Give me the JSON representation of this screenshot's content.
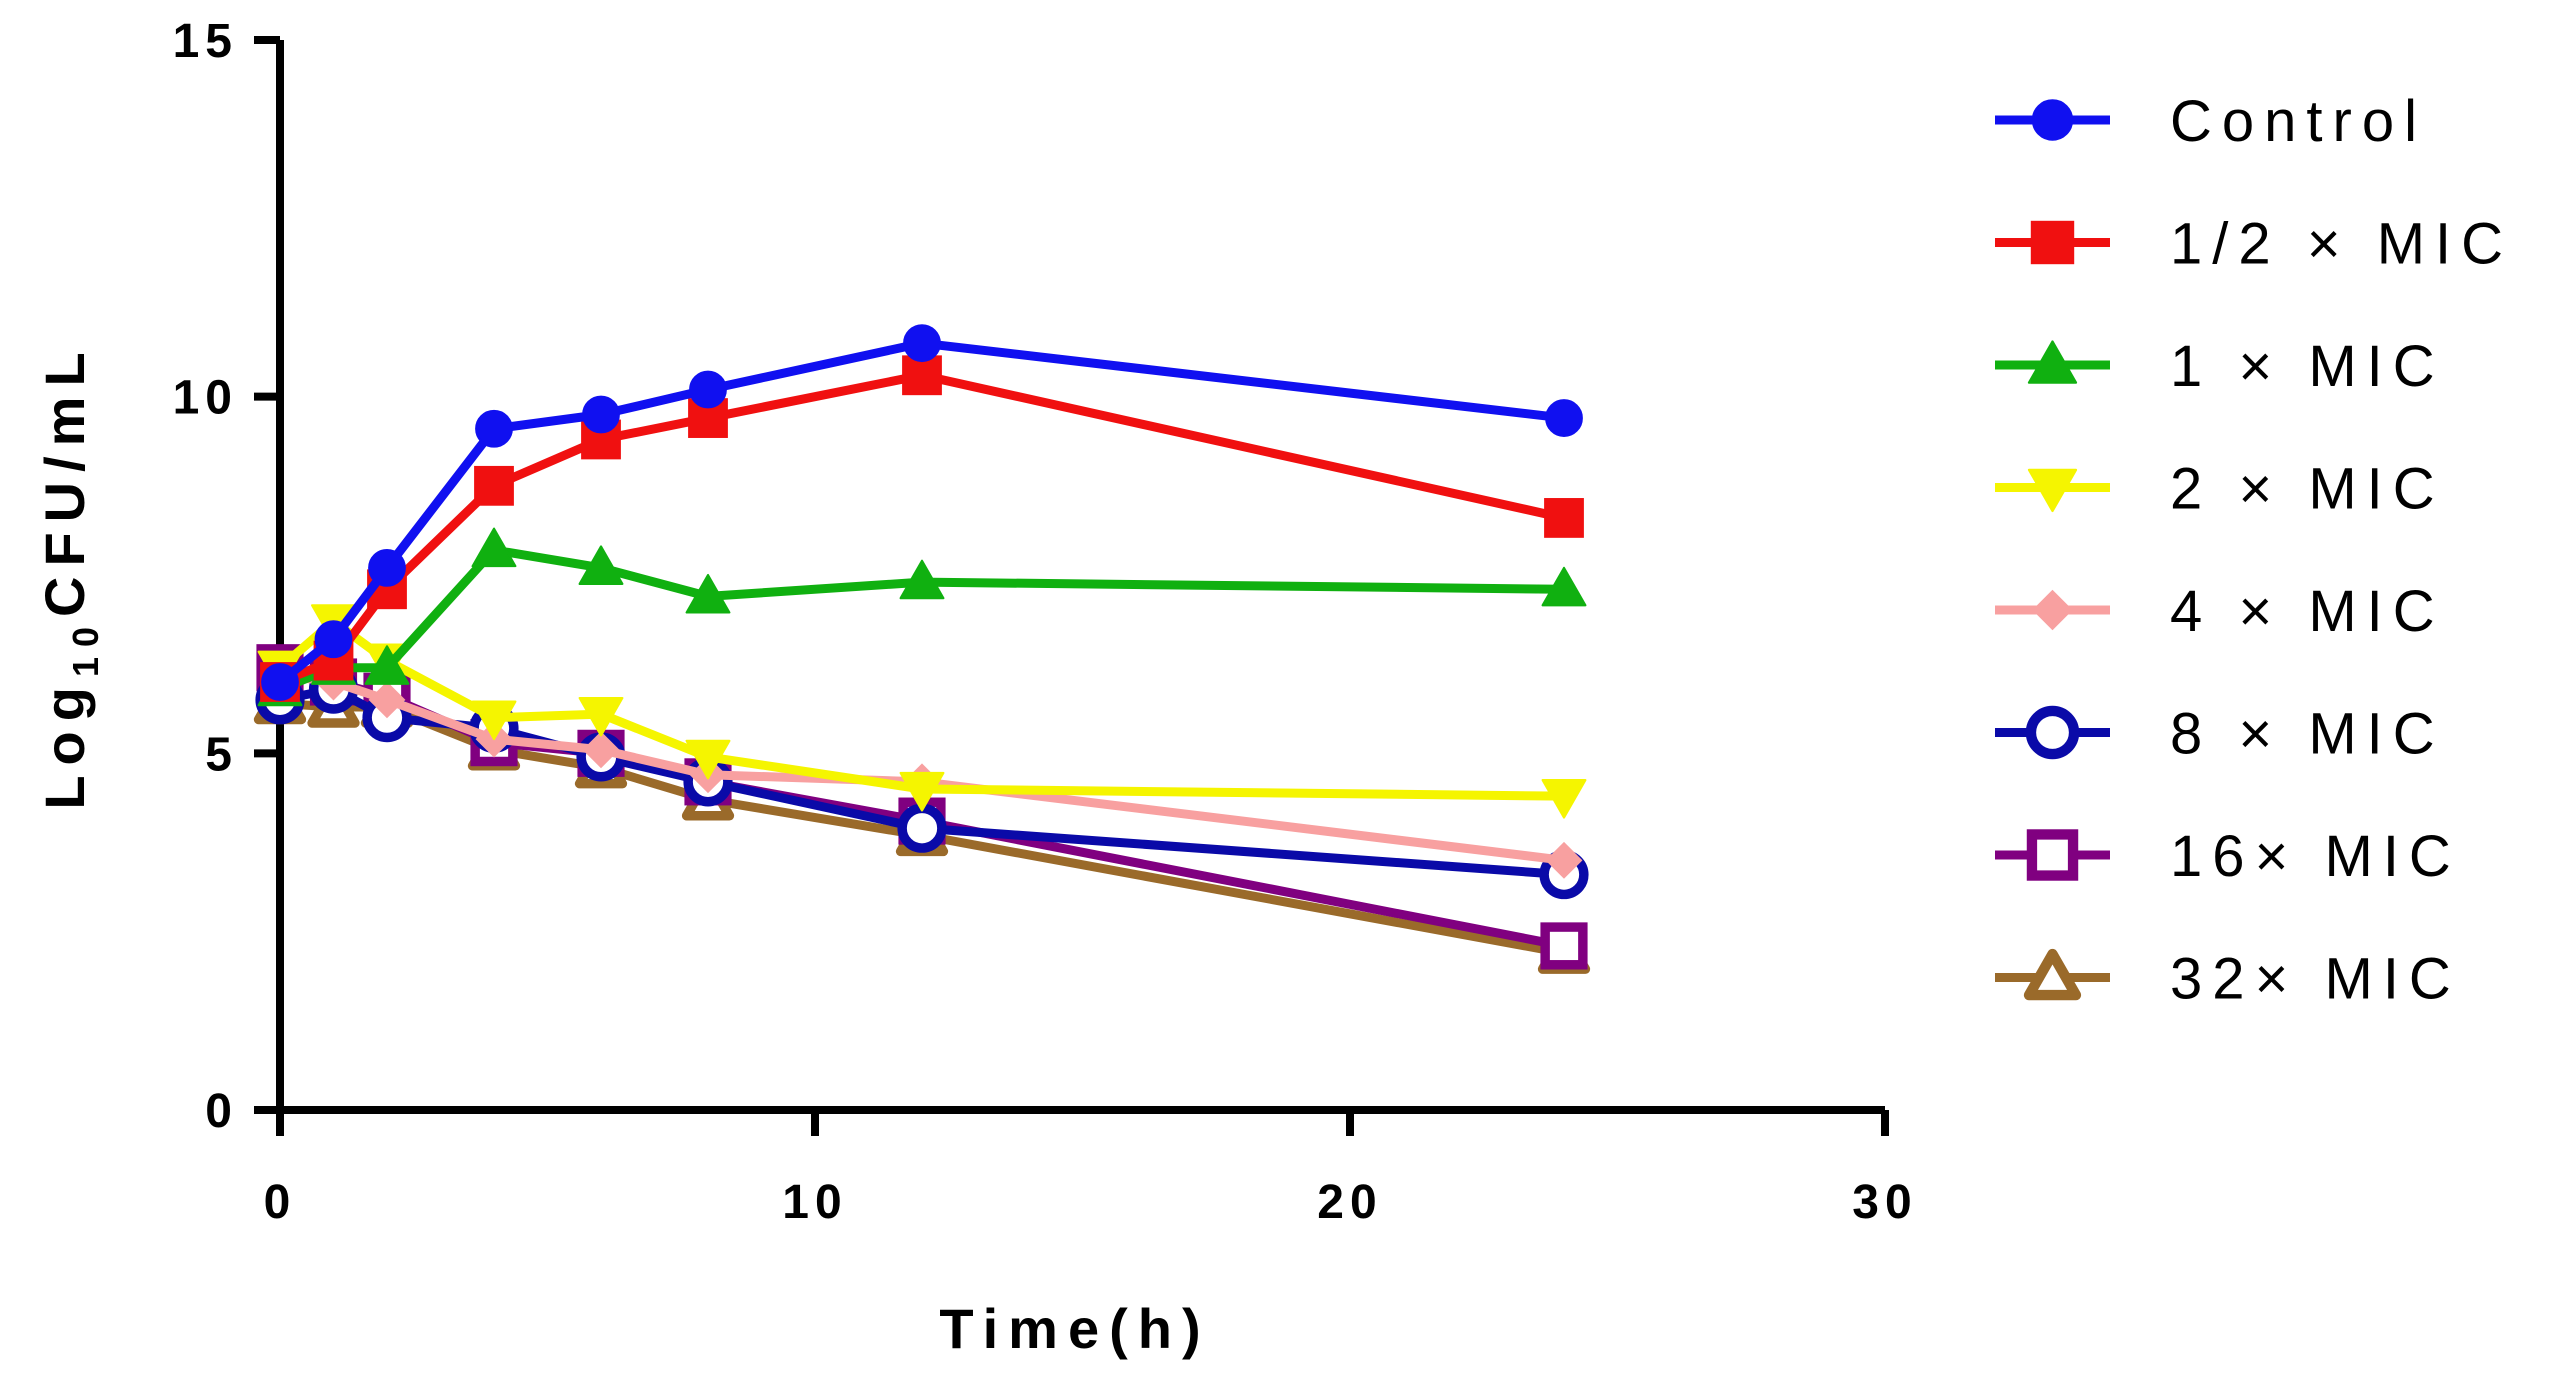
{
  "chart_data": {
    "type": "line",
    "title": "",
    "xlabel": "Time(h)",
    "ylabel": "Log10CFU/mL",
    "ylabel_parts": {
      "base": "Log",
      "subscript": "10",
      "rest": "CFU/mL"
    },
    "xlim": [
      0,
      30
    ],
    "ylim": [
      0,
      15
    ],
    "xticks": [
      0,
      10,
      20,
      30
    ],
    "yticks": [
      0,
      5,
      10,
      15
    ],
    "grid": false,
    "legend_position": "right",
    "x": [
      0,
      1,
      2,
      4,
      6,
      8,
      12,
      24
    ],
    "series": [
      {
        "name": "Control",
        "color": "#1010f0",
        "marker": "circle",
        "values": [
          6.0,
          6.6,
          7.6,
          9.55,
          9.75,
          10.1,
          10.75,
          9.7
        ]
      },
      {
        "name": "1/2 × MIC",
        "color": "#f01010",
        "marker": "square",
        "values": [
          6.0,
          6.3,
          7.3,
          8.75,
          9.4,
          9.7,
          10.3,
          8.3
        ]
      },
      {
        "name": "1 × MIC",
        "color": "#10b010",
        "marker": "triangle-up",
        "values": [
          5.9,
          6.2,
          6.2,
          7.85,
          7.6,
          7.2,
          7.4,
          7.3
        ]
      },
      {
        "name": "2 × MIC",
        "color": "#f5f500",
        "marker": "triangle-down",
        "values": [
          6.2,
          6.85,
          6.3,
          5.5,
          5.55,
          4.95,
          4.5,
          4.4
        ]
      },
      {
        "name": "4 × MIC",
        "color": "#f8a0a0",
        "marker": "diamond",
        "values": [
          6.1,
          6.0,
          5.75,
          5.2,
          5.05,
          4.7,
          4.6,
          3.5
        ]
      },
      {
        "name": "8 × MIC",
        "color": "#0a0aa8",
        "marker": "circle-open",
        "values": [
          5.75,
          5.9,
          5.5,
          5.35,
          4.95,
          4.6,
          3.95,
          3.3
        ]
      },
      {
        "name": "16× MIC",
        "color": "#800080",
        "marker": "square-open",
        "values": [
          6.2,
          6.0,
          5.8,
          5.15,
          5.0,
          4.6,
          4.05,
          2.3
        ]
      },
      {
        "name": "32× MIC",
        "color": "#9a6a2a",
        "marker": "triangle-open",
        "values": [
          5.7,
          5.65,
          5.65,
          5.05,
          4.8,
          4.35,
          3.85,
          2.2
        ]
      }
    ]
  }
}
